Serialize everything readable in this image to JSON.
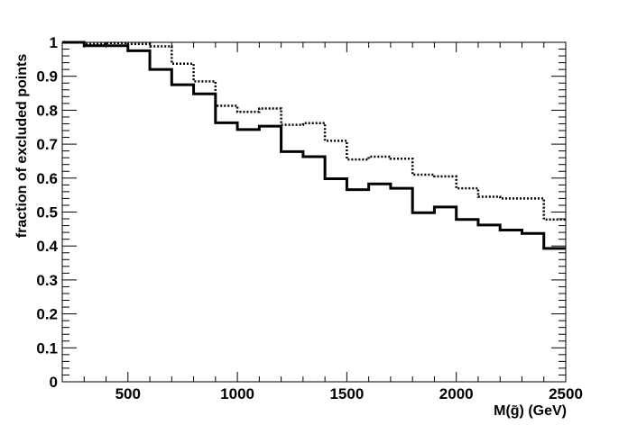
{
  "chart_data": {
    "type": "line",
    "drawstyle": "step-histogram",
    "xlabel": "M(g̃) (GeV)",
    "ylabel": "fraction of excluded points",
    "xlim": [
      200,
      2500
    ],
    "ylim": [
      0,
      1
    ],
    "x_ticks": [
      500,
      1000,
      1500,
      2000,
      2500
    ],
    "y_ticks": [
      0,
      0.1,
      0.2,
      0.3,
      0.4,
      0.5,
      0.6,
      0.7,
      0.8,
      0.9,
      1
    ],
    "bin_edges": [
      200,
      300,
      400,
      500,
      600,
      700,
      800,
      900,
      1000,
      1100,
      1200,
      1300,
      1400,
      1500,
      1600,
      1700,
      1800,
      1900,
      2000,
      2100,
      2200,
      2300,
      2400,
      2500
    ],
    "series": [
      {
        "style": "solid",
        "values": [
          1.0,
          0.99,
          0.99,
          0.975,
          0.92,
          0.875,
          0.848,
          0.763,
          0.743,
          0.753,
          0.678,
          0.663,
          0.598,
          0.566,
          0.583,
          0.57,
          0.498,
          0.515,
          0.478,
          0.462,
          0.447,
          0.437,
          0.393
        ]
      },
      {
        "style": "dotted",
        "values": [
          1.0,
          0.995,
          0.998,
          0.995,
          0.988,
          0.937,
          0.885,
          0.813,
          0.795,
          0.805,
          0.757,
          0.762,
          0.71,
          0.655,
          0.663,
          0.657,
          0.61,
          0.605,
          0.57,
          0.545,
          0.54,
          0.54,
          0.478
        ]
      }
    ]
  }
}
